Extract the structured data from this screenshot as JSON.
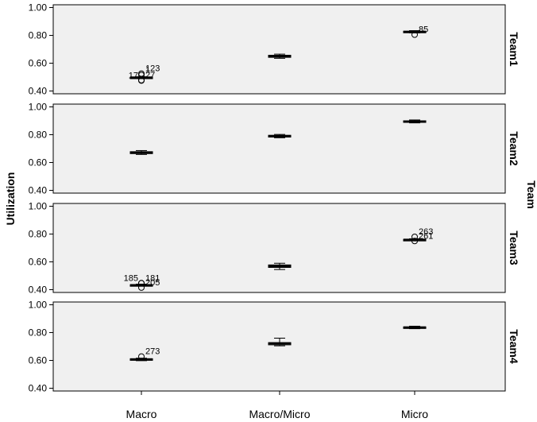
{
  "chart_data": {
    "type": "boxplot",
    "ylabel": "Utilization",
    "facet_label": "Team",
    "categories": [
      "Macro",
      "Macro/Micro",
      "Micro"
    ],
    "yticks": [
      "0.40",
      "0.60",
      "0.80",
      "1.00"
    ],
    "ylim": [
      0.38,
      1.02
    ],
    "grid": false,
    "panels": [
      {
        "name": "Team1",
        "boxes": [
          {
            "category": "Macro",
            "min": 0.495,
            "q1": 0.495,
            "median": 0.497,
            "q3": 0.5,
            "max": 0.502
          },
          {
            "category": "Macro/Micro",
            "min": 0.635,
            "q1": 0.642,
            "median": 0.65,
            "q3": 0.657,
            "max": 0.665
          },
          {
            "category": "Micro",
            "min": 0.818,
            "q1": 0.822,
            "median": 0.826,
            "q3": 0.83,
            "max": 0.834
          }
        ],
        "outliers": [
          {
            "category": "Macro",
            "value": 0.525,
            "label": "123",
            "side": "right"
          },
          {
            "category": "Macro",
            "value": 0.515,
            "label": "1",
            "side": "right"
          },
          {
            "category": "Macro",
            "value": 0.475,
            "label": "17",
            "side": "left"
          },
          {
            "category": "Macro",
            "value": 0.478,
            "label": "27",
            "side": "right"
          },
          {
            "category": "Micro",
            "value": 0.805,
            "label": "85",
            "side": "right"
          }
        ]
      },
      {
        "name": "Team2",
        "boxes": [
          {
            "category": "Macro",
            "min": 0.658,
            "q1": 0.664,
            "median": 0.672,
            "q3": 0.678,
            "max": 0.686
          },
          {
            "category": "Macro/Micro",
            "min": 0.778,
            "q1": 0.783,
            "median": 0.79,
            "q3": 0.796,
            "max": 0.802
          },
          {
            "category": "Micro",
            "min": 0.885,
            "q1": 0.89,
            "median": 0.896,
            "q3": 0.9,
            "max": 0.906
          }
        ],
        "outliers": []
      },
      {
        "name": "Team3",
        "boxes": [
          {
            "category": "Macro",
            "min": 0.428,
            "q1": 0.43,
            "median": 0.433,
            "q3": 0.436,
            "max": 0.44
          },
          {
            "category": "Macro/Micro",
            "min": 0.545,
            "q1": 0.56,
            "median": 0.57,
            "q3": 0.578,
            "max": 0.59
          },
          {
            "category": "Micro",
            "min": 0.752,
            "q1": 0.755,
            "median": 0.759,
            "q3": 0.762,
            "max": 0.766
          }
        ],
        "outliers": [
          {
            "category": "Macro",
            "value": 0.447,
            "label": "181",
            "side": "right"
          },
          {
            "category": "Macro",
            "value": 0.447,
            "label": "185",
            "side": "left"
          },
          {
            "category": "Macro",
            "value": 0.415,
            "label": "205",
            "side": "right"
          },
          {
            "category": "Micro",
            "value": 0.78,
            "label": "263",
            "side": "right"
          },
          {
            "category": "Micro",
            "value": 0.75,
            "label": "261",
            "side": "right"
          }
        ]
      },
      {
        "name": "Team4",
        "boxes": [
          {
            "category": "Macro",
            "min": 0.598,
            "q1": 0.603,
            "median": 0.608,
            "q3": 0.612,
            "max": 0.616
          },
          {
            "category": "Macro/Micro",
            "min": 0.705,
            "q1": 0.712,
            "median": 0.722,
            "q3": 0.728,
            "max": 0.76
          },
          {
            "category": "Micro",
            "min": 0.828,
            "q1": 0.832,
            "median": 0.837,
            "q3": 0.841,
            "max": 0.846
          }
        ],
        "outliers": [
          {
            "category": "Macro",
            "value": 0.628,
            "label": "273",
            "side": "right"
          }
        ]
      }
    ]
  }
}
